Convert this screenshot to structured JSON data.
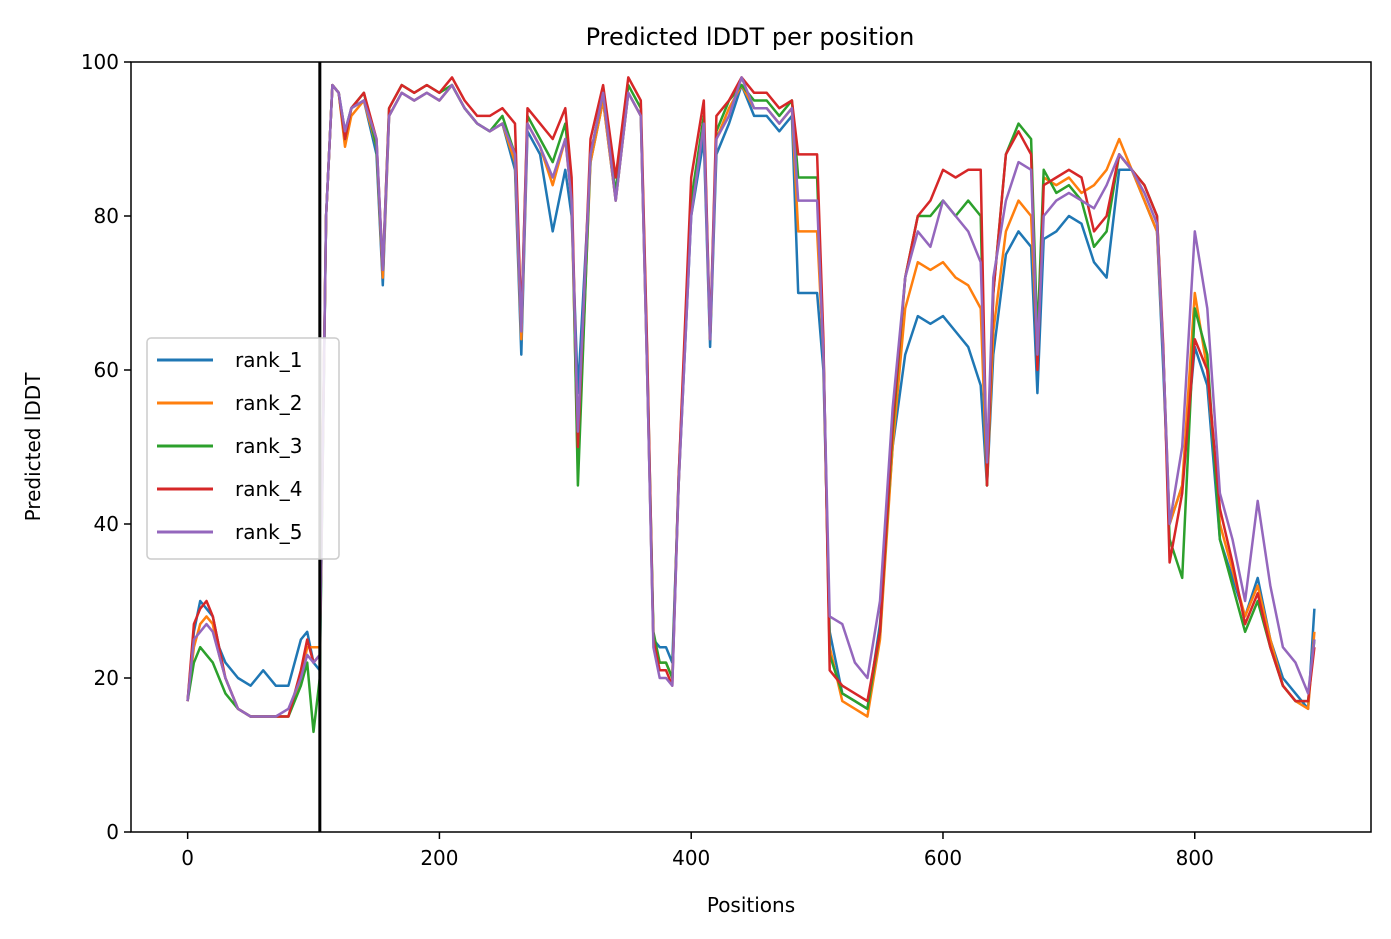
{
  "chart_data": {
    "type": "line",
    "title": "Predicted lDDT per position",
    "xlabel": "Positions",
    "ylabel": "Predicted lDDT",
    "xlim": [
      -45,
      940
    ],
    "ylim": [
      0,
      100
    ],
    "xticks": [
      0,
      200,
      400,
      600,
      800
    ],
    "yticks": [
      0,
      20,
      40,
      60,
      80,
      100
    ],
    "grid": false,
    "legend_position": "center-left",
    "vertical_line_x": 105,
    "series": [
      {
        "name": "rank_1",
        "color": "#1f77b4",
        "x": [
          0,
          5,
          10,
          15,
          20,
          25,
          30,
          40,
          50,
          60,
          70,
          80,
          90,
          95,
          100,
          105,
          110,
          115,
          120,
          125,
          130,
          140,
          150,
          155,
          160,
          170,
          180,
          190,
          200,
          210,
          220,
          230,
          240,
          250,
          260,
          265,
          270,
          280,
          290,
          300,
          305,
          310,
          320,
          330,
          340,
          350,
          360,
          365,
          370,
          375,
          380,
          385,
          390,
          400,
          410,
          415,
          420,
          430,
          440,
          450,
          460,
          470,
          480,
          485,
          490,
          500,
          505,
          510,
          520,
          530,
          540,
          550,
          560,
          570,
          580,
          590,
          600,
          610,
          620,
          630,
          635,
          640,
          650,
          660,
          670,
          675,
          680,
          690,
          700,
          710,
          720,
          730,
          740,
          750,
          760,
          770,
          775,
          780,
          790,
          800,
          810,
          820,
          830,
          840,
          850,
          860,
          870,
          880,
          890,
          895
        ],
        "y": [
          17,
          26,
          30,
          29,
          28,
          24,
          22,
          20,
          19,
          21,
          19,
          19,
          25,
          26,
          22,
          21,
          80,
          97,
          96,
          91,
          94,
          95,
          88,
          71,
          93,
          96,
          95,
          96,
          95,
          97,
          94,
          92,
          91,
          92,
          86,
          62,
          91,
          88,
          78,
          86,
          80,
          57,
          87,
          95,
          82,
          96,
          93,
          60,
          25,
          24,
          24,
          22,
          45,
          80,
          90,
          63,
          88,
          92,
          97,
          93,
          93,
          91,
          93,
          70,
          70,
          70,
          60,
          26,
          18,
          17,
          16,
          27,
          50,
          62,
          67,
          66,
          67,
          65,
          63,
          58,
          45,
          62,
          75,
          78,
          76,
          57,
          77,
          78,
          80,
          79,
          74,
          72,
          86,
          86,
          82,
          78,
          60,
          40,
          45,
          63,
          58,
          38,
          33,
          28,
          33,
          25,
          20,
          18,
          16,
          29
        ]
      },
      {
        "name": "rank_2",
        "color": "#ff7f0e",
        "x": [
          0,
          5,
          10,
          15,
          20,
          25,
          30,
          40,
          50,
          60,
          70,
          80,
          90,
          95,
          100,
          105,
          110,
          115,
          120,
          125,
          130,
          140,
          150,
          155,
          160,
          170,
          180,
          190,
          200,
          210,
          220,
          230,
          240,
          250,
          260,
          265,
          270,
          280,
          290,
          300,
          305,
          310,
          320,
          330,
          340,
          350,
          360,
          365,
          370,
          375,
          380,
          385,
          390,
          400,
          410,
          415,
          420,
          430,
          440,
          450,
          460,
          470,
          480,
          485,
          490,
          500,
          505,
          510,
          520,
          530,
          540,
          550,
          560,
          570,
          580,
          590,
          600,
          610,
          620,
          630,
          635,
          640,
          650,
          660,
          670,
          675,
          680,
          690,
          700,
          710,
          720,
          730,
          740,
          750,
          760,
          770,
          775,
          780,
          790,
          800,
          810,
          820,
          830,
          840,
          850,
          860,
          870,
          880,
          890,
          895
        ],
        "y": [
          17,
          24,
          27,
          28,
          27,
          23,
          20,
          16,
          15,
          15,
          15,
          15,
          20,
          24,
          24,
          24,
          80,
          97,
          96,
          89,
          93,
          95,
          89,
          72,
          93,
          96,
          95,
          96,
          95,
          97,
          94,
          92,
          91,
          92,
          87,
          64,
          92,
          89,
          84,
          90,
          82,
          47,
          87,
          95,
          82,
          96,
          93,
          60,
          25,
          22,
          22,
          20,
          45,
          82,
          92,
          64,
          90,
          94,
          97,
          94,
          94,
          92,
          94,
          78,
          78,
          78,
          62,
          24,
          17,
          16,
          15,
          25,
          50,
          68,
          74,
          73,
          74,
          72,
          71,
          68,
          45,
          65,
          78,
          82,
          80,
          62,
          85,
          84,
          85,
          83,
          84,
          86,
          90,
          86,
          82,
          78,
          62,
          40,
          45,
          70,
          60,
          40,
          34,
          28,
          32,
          25,
          19,
          17,
          16,
          26
        ]
      },
      {
        "name": "rank_3",
        "color": "#2ca02c",
        "x": [
          0,
          5,
          10,
          15,
          20,
          25,
          30,
          40,
          50,
          60,
          70,
          80,
          90,
          95,
          100,
          105,
          110,
          115,
          120,
          125,
          130,
          140,
          150,
          155,
          160,
          170,
          180,
          190,
          200,
          210,
          220,
          230,
          240,
          250,
          260,
          265,
          270,
          280,
          290,
          300,
          305,
          310,
          320,
          330,
          340,
          350,
          360,
          365,
          370,
          375,
          380,
          385,
          390,
          400,
          410,
          415,
          420,
          430,
          440,
          450,
          460,
          470,
          480,
          485,
          490,
          500,
          505,
          510,
          520,
          530,
          540,
          550,
          560,
          570,
          580,
          590,
          600,
          610,
          620,
          630,
          635,
          640,
          650,
          660,
          670,
          675,
          680,
          690,
          700,
          710,
          720,
          730,
          740,
          750,
          760,
          770,
          775,
          780,
          790,
          800,
          810,
          820,
          830,
          840,
          850,
          860,
          870,
          880,
          890,
          895
        ],
        "y": [
          17,
          22,
          24,
          23,
          22,
          20,
          18,
          16,
          15,
          15,
          15,
          15,
          19,
          22,
          13,
          20,
          80,
          97,
          96,
          90,
          94,
          96,
          89,
          73,
          94,
          97,
          96,
          97,
          96,
          97,
          94,
          92,
          91,
          93,
          88,
          66,
          93,
          90,
          87,
          92,
          84,
          45,
          88,
          96,
          83,
          97,
          94,
          62,
          26,
          22,
          22,
          20,
          46,
          82,
          93,
          64,
          91,
          95,
          97,
          95,
          95,
          93,
          95,
          85,
          85,
          85,
          63,
          23,
          18,
          17,
          16,
          26,
          52,
          72,
          80,
          80,
          82,
          80,
          82,
          80,
          45,
          70,
          88,
          92,
          90,
          64,
          86,
          83,
          84,
          82,
          76,
          78,
          88,
          86,
          84,
          80,
          62,
          38,
          33,
          68,
          62,
          38,
          32,
          26,
          30,
          24,
          19,
          17,
          17,
          25
        ]
      },
      {
        "name": "rank_4",
        "color": "#d62728",
        "x": [
          0,
          5,
          10,
          15,
          20,
          25,
          30,
          40,
          50,
          60,
          70,
          80,
          90,
          95,
          100,
          105,
          110,
          115,
          120,
          125,
          130,
          140,
          150,
          155,
          160,
          170,
          180,
          190,
          200,
          210,
          220,
          230,
          240,
          250,
          260,
          265,
          270,
          280,
          290,
          300,
          305,
          310,
          320,
          330,
          340,
          350,
          360,
          365,
          370,
          375,
          380,
          385,
          390,
          400,
          410,
          415,
          420,
          430,
          440,
          450,
          460,
          470,
          480,
          485,
          490,
          500,
          505,
          510,
          520,
          530,
          540,
          550,
          560,
          570,
          580,
          590,
          600,
          610,
          620,
          630,
          635,
          640,
          650,
          660,
          670,
          675,
          680,
          690,
          700,
          710,
          720,
          730,
          740,
          750,
          760,
          770,
          775,
          780,
          790,
          800,
          810,
          820,
          830,
          840,
          850,
          860,
          870,
          880,
          890,
          895
        ],
        "y": [
          17,
          27,
          29,
          30,
          28,
          24,
          20,
          16,
          15,
          15,
          15,
          15,
          21,
          25,
          22,
          23,
          80,
          97,
          96,
          90,
          94,
          96,
          90,
          73,
          94,
          97,
          96,
          97,
          96,
          98,
          95,
          93,
          93,
          94,
          92,
          66,
          94,
          92,
          90,
          94,
          85,
          50,
          90,
          97,
          85,
          98,
          95,
          63,
          25,
          21,
          21,
          19,
          46,
          85,
          95,
          64,
          93,
          95,
          98,
          96,
          96,
          94,
          95,
          88,
          88,
          88,
          64,
          21,
          19,
          18,
          17,
          26,
          53,
          72,
          80,
          82,
          86,
          85,
          86,
          86,
          45,
          70,
          88,
          91,
          88,
          60,
          84,
          85,
          86,
          85,
          78,
          80,
          88,
          86,
          84,
          80,
          63,
          35,
          44,
          64,
          60,
          42,
          35,
          27,
          31,
          24,
          19,
          17,
          17,
          24
        ]
      },
      {
        "name": "rank_5",
        "color": "#9467bd",
        "x": [
          0,
          5,
          10,
          15,
          20,
          25,
          30,
          40,
          50,
          60,
          70,
          80,
          90,
          95,
          100,
          105,
          110,
          115,
          120,
          125,
          130,
          140,
          150,
          155,
          160,
          170,
          180,
          190,
          200,
          210,
          220,
          230,
          240,
          250,
          260,
          265,
          270,
          280,
          290,
          300,
          305,
          310,
          320,
          330,
          340,
          350,
          360,
          365,
          370,
          375,
          380,
          385,
          390,
          400,
          410,
          415,
          420,
          430,
          440,
          450,
          460,
          470,
          480,
          485,
          490,
          500,
          505,
          510,
          520,
          530,
          540,
          550,
          560,
          570,
          580,
          590,
          600,
          610,
          620,
          630,
          635,
          640,
          650,
          660,
          670,
          675,
          680,
          690,
          700,
          710,
          720,
          730,
          740,
          750,
          760,
          770,
          775,
          780,
          790,
          800,
          810,
          820,
          830,
          840,
          850,
          860,
          870,
          880,
          890,
          895
        ],
        "y": [
          17,
          25,
          26,
          27,
          26,
          23,
          20,
          16,
          15,
          15,
          15,
          16,
          20,
          23,
          22,
          23,
          80,
          97,
          96,
          91,
          94,
          95,
          90,
          73,
          93,
          96,
          95,
          96,
          95,
          97,
          94,
          92,
          91,
          92,
          88,
          65,
          92,
          89,
          85,
          90,
          82,
          52,
          88,
          96,
          82,
          96,
          93,
          60,
          24,
          20,
          20,
          19,
          45,
          80,
          92,
          64,
          90,
          93,
          98,
          94,
          94,
          92,
          94,
          82,
          82,
          82,
          62,
          28,
          27,
          22,
          20,
          30,
          55,
          72,
          78,
          76,
          82,
          80,
          78,
          74,
          48,
          72,
          82,
          87,
          86,
          62,
          80,
          82,
          83,
          82,
          81,
          84,
          88,
          86,
          83,
          79,
          62,
          40,
          50,
          78,
          68,
          44,
          38,
          30,
          43,
          32,
          24,
          22,
          18,
          25
        ]
      }
    ]
  }
}
